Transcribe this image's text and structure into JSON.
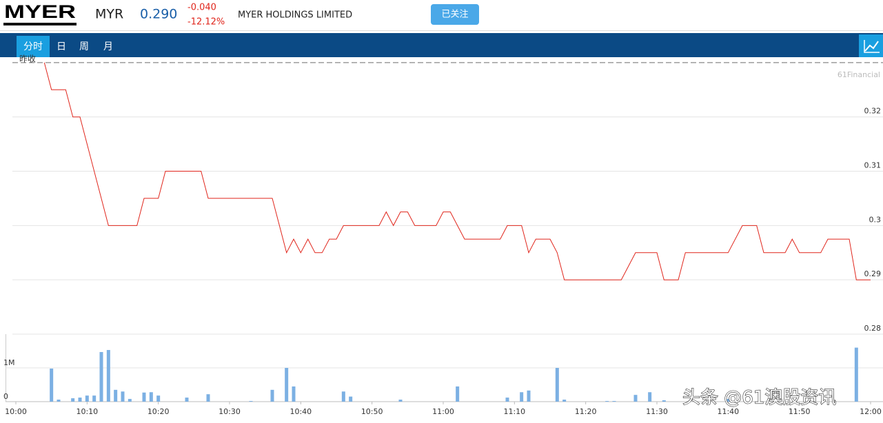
{
  "header": {
    "logo": "MYER",
    "symbol": "MYR",
    "price": "0.290",
    "change": "-0.040",
    "change_pct": "-12.12%",
    "company": "MYER HOLDINGS LIMITED",
    "follow_button": "已关注"
  },
  "tabs": [
    "分时",
    "日",
    "周",
    "月"
  ],
  "watermark": "头条 @61澳股资讯",
  "chart_data": [
    {
      "type": "line",
      "prev_close_label": "昨收",
      "prev_close": 0.33,
      "source": "61Financial",
      "x": [
        "10:04",
        "10:05",
        "10:07",
        "10:08",
        "10:09",
        "10:13",
        "10:17",
        "10:18",
        "10:20",
        "10:21",
        "10:26",
        "10:27",
        "10:36",
        "10:38",
        "10:39",
        "10:40",
        "10:41",
        "10:42",
        "10:43",
        "10:44",
        "10:45",
        "10:46",
        "10:51",
        "10:52",
        "10:53",
        "10:54",
        "10:55",
        "10:56",
        "10:59",
        "11:00",
        "11:01",
        "11:03",
        "11:08",
        "11:09",
        "11:11",
        "11:12",
        "11:13",
        "11:15",
        "11:16",
        "11:17",
        "11:25",
        "11:27",
        "11:30",
        "11:31",
        "11:33",
        "11:34",
        "11:40",
        "11:42",
        "11:44",
        "11:45",
        "11:48",
        "11:49",
        "11:50",
        "11:53",
        "11:54",
        "11:57",
        "11:58",
        "12:00"
      ],
      "series": [
        {
          "color": "#e0251b",
          "values": [
            0.33,
            0.325,
            0.325,
            0.32,
            0.32,
            0.3,
            0.3,
            0.305,
            0.305,
            0.31,
            0.31,
            0.305,
            0.305,
            0.295,
            0.2975,
            0.295,
            0.2975,
            0.295,
            0.295,
            0.2975,
            0.2975,
            0.3,
            0.3,
            0.3025,
            0.3,
            0.3025,
            0.3025,
            0.3,
            0.3,
            0.3025,
            0.3025,
            0.2975,
            0.2975,
            0.3,
            0.3,
            0.295,
            0.2975,
            0.2975,
            0.295,
            0.29,
            0.29,
            0.295,
            0.295,
            0.29,
            0.29,
            0.295,
            0.295,
            0.3,
            0.3,
            0.295,
            0.295,
            0.2975,
            0.295,
            0.295,
            0.2975,
            0.2975,
            0.29,
            0.29
          ]
        }
      ],
      "xlim": [
        "10:00",
        "12:00"
      ],
      "ylim": [
        0.28,
        0.331
      ],
      "yticks": [
        0.28,
        0.29,
        0.3,
        0.31,
        0.32
      ],
      "grid": true
    },
    {
      "type": "bar",
      "color": "#7cb0e3",
      "x": [
        "10:05",
        "10:06",
        "10:08",
        "10:09",
        "10:10",
        "10:11",
        "10:12",
        "10:13",
        "10:14",
        "10:15",
        "10:16",
        "10:18",
        "10:19",
        "10:20",
        "10:24",
        "10:27",
        "10:33",
        "10:36",
        "10:38",
        "10:39",
        "10:46",
        "10:47",
        "10:54",
        "11:02",
        "11:09",
        "11:11",
        "11:12",
        "11:16",
        "11:17",
        "11:23",
        "11:24",
        "11:27",
        "11:29",
        "11:31",
        "11:40",
        "11:58"
      ],
      "values": [
        980000,
        60000,
        100000,
        120000,
        180000,
        180000,
        1470000,
        1530000,
        350000,
        300000,
        80000,
        270000,
        280000,
        180000,
        120000,
        220000,
        20000,
        350000,
        1000000,
        450000,
        300000,
        150000,
        60000,
        450000,
        120000,
        280000,
        330000,
        1000000,
        60000,
        20000,
        20000,
        200000,
        280000,
        40000,
        80000,
        1600000
      ],
      "xlim": [
        "10:00",
        "12:00"
      ],
      "xticks": [
        "10:00",
        "10:10",
        "10:20",
        "10:30",
        "10:40",
        "10:50",
        "11:00",
        "11:10",
        "11:20",
        "11:30",
        "11:40",
        "11:50",
        "12:00"
      ],
      "ylim": [
        0,
        2000000
      ],
      "yticks": [
        0,
        {
          "value": 1000000,
          "label": "1M"
        }
      ],
      "grid": true
    }
  ]
}
